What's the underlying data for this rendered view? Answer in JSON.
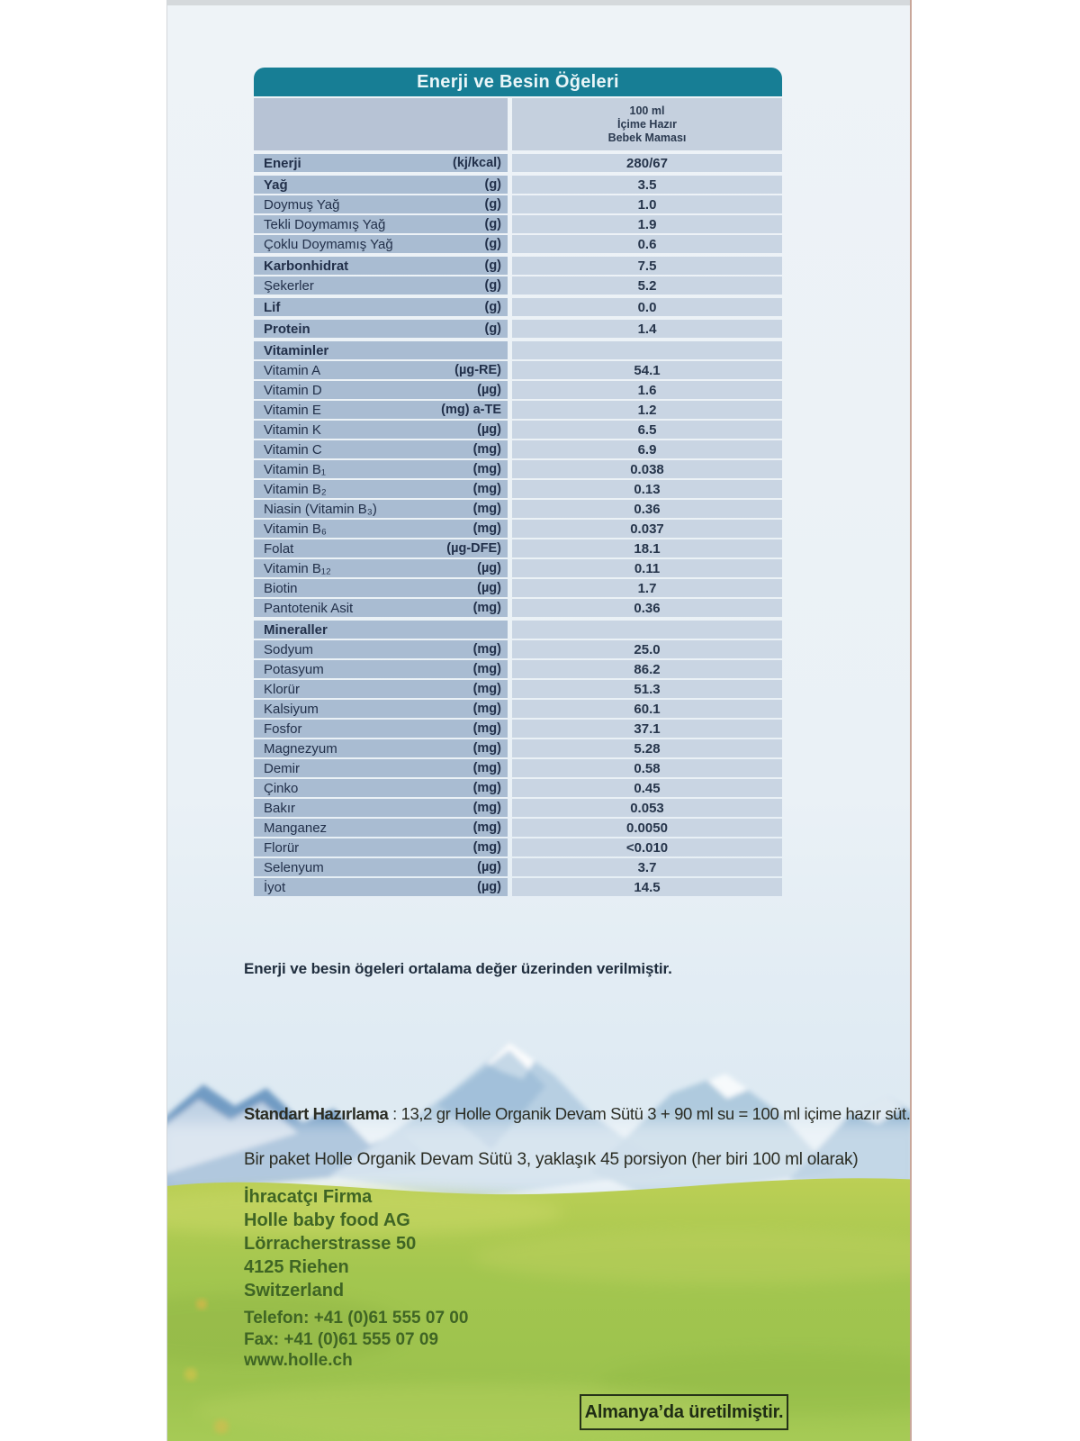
{
  "package": {
    "table": {
      "title": "Enerji ve Besin Öğeleri",
      "column_header_lines": [
        "100 ml",
        "İçime Hazır",
        "Bebek Maması"
      ],
      "rows": [
        {
          "label": "Enerji",
          "unit": "(kj/kcal)",
          "value": "280/67",
          "style": "bold",
          "sep": "thick"
        },
        {
          "label": "Yağ",
          "unit": "(g)",
          "value": "3.5",
          "style": "bold",
          "sep": "thick"
        },
        {
          "label": "Doymuş Yağ",
          "unit": "(g)",
          "value": "1.0",
          "style": "normal",
          "sep": "thin"
        },
        {
          "label": "Tekli Doymamış Yağ",
          "unit": "(g)",
          "value": "1.9",
          "style": "normal",
          "sep": "thin"
        },
        {
          "label": "Çoklu Doymamış Yağ",
          "unit": "(g)",
          "value": "0.6",
          "style": "normal",
          "sep": "thin"
        },
        {
          "label": "Karbonhidrat",
          "unit": "(g)",
          "value": "7.5",
          "style": "bold",
          "sep": "thick"
        },
        {
          "label": "Şekerler",
          "unit": "(g)",
          "value": "5.2",
          "style": "normal",
          "sep": "thin"
        },
        {
          "label": "Lif",
          "unit": "(g)",
          "value": "0.0",
          "style": "bold",
          "sep": "thick"
        },
        {
          "label": "Protein",
          "unit": "(g)",
          "value": "1.4",
          "style": "bold",
          "sep": "thick"
        },
        {
          "label": "Vitaminler",
          "unit": "",
          "value": "",
          "style": "section",
          "sep": "thick"
        },
        {
          "label": "Vitamin A",
          "unit": "(µg-RE)",
          "value": "54.1",
          "style": "normal",
          "sep": "thin"
        },
        {
          "label": "Vitamin D",
          "unit": "(µg)",
          "value": "1.6",
          "style": "normal",
          "sep": "thin"
        },
        {
          "label": "Vitamin E",
          "unit": "(mg) a-TE",
          "value": "1.2",
          "style": "normal",
          "sep": "thin"
        },
        {
          "label": "Vitamin K",
          "unit": "(µg)",
          "value": "6.5",
          "style": "normal",
          "sep": "thin"
        },
        {
          "label": "Vitamin C",
          "unit": "(mg)",
          "value": "6.9",
          "style": "normal",
          "sep": "thin"
        },
        {
          "label": "Vitamin B₁",
          "unit": "(mg)",
          "value": "0.038",
          "style": "normal",
          "sep": "thin"
        },
        {
          "label": "Vitamin B₂",
          "unit": "(mg)",
          "value": "0.13",
          "style": "normal",
          "sep": "thin"
        },
        {
          "label": "Niasin (Vitamin B₃)",
          "unit": "(mg)",
          "value": "0.36",
          "style": "normal",
          "sep": "thin"
        },
        {
          "label": "Vitamin B₆",
          "unit": "(mg)",
          "value": "0.037",
          "style": "normal",
          "sep": "thin"
        },
        {
          "label": "Folat",
          "unit": "(µg-DFE)",
          "value": "18.1",
          "style": "normal",
          "sep": "thin"
        },
        {
          "label": "Vitamin B₁₂",
          "unit": "(µg)",
          "value": "0.11",
          "style": "normal",
          "sep": "thin"
        },
        {
          "label": "Biotin",
          "unit": "(µg)",
          "value": "1.7",
          "style": "normal",
          "sep": "thin"
        },
        {
          "label": "Pantotenik Asit",
          "unit": "(mg)",
          "value": "0.36",
          "style": "normal",
          "sep": "thin"
        },
        {
          "label": "Mineraller",
          "unit": "",
          "value": "",
          "style": "section",
          "sep": "thick"
        },
        {
          "label": "Sodyum",
          "unit": "(mg)",
          "value": "25.0",
          "style": "normal",
          "sep": "thin"
        },
        {
          "label": "Potasyum",
          "unit": "(mg)",
          "value": "86.2",
          "style": "normal",
          "sep": "thin"
        },
        {
          "label": "Klorür",
          "unit": "(mg)",
          "value": "51.3",
          "style": "normal",
          "sep": "thin"
        },
        {
          "label": "Kalsiyum",
          "unit": "(mg)",
          "value": "60.1",
          "style": "normal",
          "sep": "thin"
        },
        {
          "label": "Fosfor",
          "unit": "(mg)",
          "value": "37.1",
          "style": "normal",
          "sep": "thin"
        },
        {
          "label": "Magnezyum",
          "unit": "(mg)",
          "value": "5.28",
          "style": "normal",
          "sep": "thin"
        },
        {
          "label": "Demir",
          "unit": "(mg)",
          "value": "0.58",
          "style": "normal",
          "sep": "thin"
        },
        {
          "label": "Çinko",
          "unit": "(mg)",
          "value": "0.45",
          "style": "normal",
          "sep": "thin"
        },
        {
          "label": "Bakır",
          "unit": "(mg)",
          "value": "0.053",
          "style": "normal",
          "sep": "thin"
        },
        {
          "label": "Manganez",
          "unit": "(mg)",
          "value": "0.0050",
          "style": "normal",
          "sep": "thin"
        },
        {
          "label": "Florür",
          "unit": "(mg)",
          "value": "<0.010",
          "style": "normal",
          "sep": "thin"
        },
        {
          "label": "Selenyum",
          "unit": "(µg)",
          "value": "3.7",
          "style": "normal",
          "sep": "thin"
        },
        {
          "label": "İyot",
          "unit": "(µg)",
          "value": "14.5",
          "style": "normal",
          "sep": "thin"
        }
      ]
    },
    "average_note": "Enerji ve besin ögeleri ortalama değer üzerinden verilmiştir.",
    "preparation": {
      "bold_prefix": "Standart Hazırlama",
      "rest": " : 13,2 gr Holle Organik Devam Sütü 3 + 90 ml su = 100 ml içime hazır süt.",
      "line2": "Bir paket Holle Organik Devam Sütü 3, yaklaşık 45 porsiyon (her biri 100 ml olarak)"
    },
    "exporter": {
      "heading": "İhracatçı Firma",
      "lines": [
        "Holle baby food AG",
        "Lörracherstrasse 50",
        "4125 Riehen",
        "Switzerland"
      ]
    },
    "contact": {
      "lines": [
        "Telefon: +41 (0)61 555 07 00",
        "Fax: +41 (0)61 555 07 09",
        "www.holle.ch"
      ]
    },
    "origin_box_text": "Almanya’da üretilmiştir.",
    "colors": {
      "header_teal": "#177e95",
      "label_column_blue": "#a9bcd2",
      "value_column_blue": "#c9d5e3",
      "column_header_left": "#b7c3d5",
      "column_header_right": "#c5d0de",
      "table_text_navy": "#26354b",
      "green_text": "#3f6524",
      "meadow_green": "#a2c551",
      "mountain_blue": "#5c88b5",
      "icy_background": "#eef3f7"
    }
  }
}
